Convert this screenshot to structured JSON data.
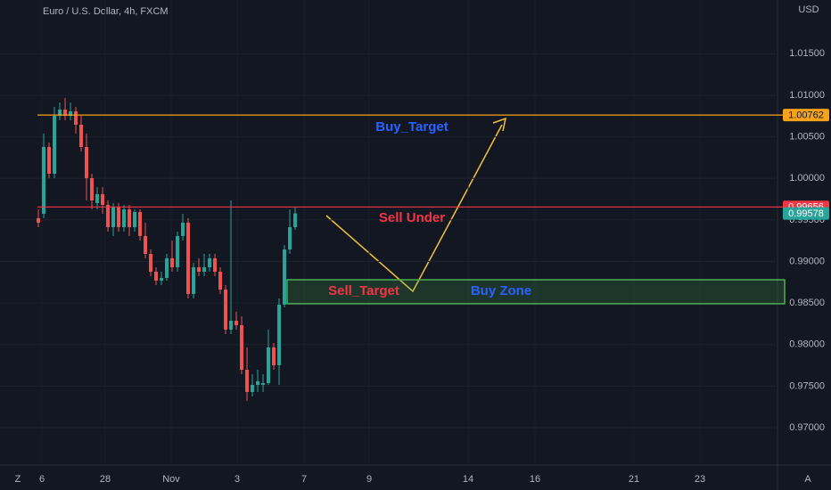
{
  "chart_data": {
    "type": "candlestick",
    "title": "Euro / U.S. Dollar, 4h, FXCM",
    "y_axis_label": "USD",
    "buttons": [
      "Z",
      "A"
    ],
    "up_color": "#26a69a",
    "down_color": "#ef5350",
    "grid": true,
    "series": {
      "open": [
        0.9952,
        0.99574,
        1.00378,
        1.00056,
        1.00753,
        1.00828,
        1.00753,
        1.00807,
        1.00646,
        1.00378,
        1.00003,
        0.99702,
        0.9981,
        0.99681,
        0.99413,
        0.9966,
        0.99413,
        0.99627,
        0.99413,
        0.99595,
        0.99306,
        0.99091,
        0.98877,
        0.98769,
        0.98802,
        0.99038,
        0.9893,
        0.99306,
        0.99467,
        0.98609,
        0.9893,
        0.98877,
        0.9893,
        0.99038,
        0.98877,
        0.98662,
        0.9818,
        0.98287,
        0.98233,
        0.97697,
        0.97429,
        0.97515,
        0.97515,
        0.97536,
        0.97965,
        0.97751,
        0.9848,
        0.99145,
        0.99413
      ],
      "high": [
        0.99627,
        1.00539,
        1.00432,
        1.00861,
        1.00914,
        1.00968,
        1.00914,
        1.00861,
        1.00753,
        1.00539,
        1.00056,
        0.99895,
        0.99895,
        0.99735,
        0.99702,
        0.99702,
        0.99681,
        0.99681,
        0.99627,
        0.99627,
        0.99467,
        0.99145,
        0.9893,
        0.98877,
        0.99091,
        0.99252,
        0.99359,
        0.99574,
        0.9952,
        0.98984,
        0.99038,
        0.99091,
        0.99091,
        0.99091,
        0.9893,
        0.98716,
        0.99735,
        0.98394,
        0.9834,
        0.97965,
        0.97643,
        0.97697,
        0.97643,
        0.9818,
        0.98019,
        0.98555,
        0.99198,
        0.99627,
        0.9966
      ],
      "low": [
        0.99413,
        0.9952,
        1.00003,
        1.00003,
        1.007,
        1.007,
        1.007,
        1.00539,
        1.00324,
        0.99735,
        0.99627,
        0.99627,
        0.99574,
        0.99359,
        0.99306,
        0.99359,
        0.99359,
        0.99306,
        0.99359,
        0.99252,
        0.99038,
        0.98823,
        0.98716,
        0.98716,
        0.98769,
        0.98877,
        0.98877,
        0.99252,
        0.98555,
        0.98555,
        0.98823,
        0.98823,
        0.98877,
        0.98823,
        0.98609,
        0.98126,
        0.98126,
        0.9818,
        0.97643,
        0.97322,
        0.97375,
        0.97429,
        0.97429,
        0.97515,
        0.97697,
        0.97515,
        0.98448,
        0.99091,
        0.99381
      ],
      "close": [
        0.99467,
        1.00378,
        1.00056,
        1.00753,
        1.00828,
        1.00753,
        1.00807,
        1.00646,
        1.00378,
        1.00003,
        0.99735,
        0.9981,
        0.99681,
        0.99413,
        0.9966,
        0.99413,
        0.99627,
        0.99413,
        0.99595,
        0.99306,
        0.99091,
        0.98877,
        0.98769,
        0.98802,
        0.99038,
        0.9893,
        0.99306,
        0.99467,
        0.98609,
        0.9893,
        0.98877,
        0.9893,
        0.99038,
        0.98877,
        0.98662,
        0.9818,
        0.98287,
        0.98233,
        0.97697,
        0.97429,
        0.97515,
        0.97558,
        0.97536,
        0.97965,
        0.97751,
        0.9848,
        0.99145,
        0.99413,
        0.99578
      ]
    },
    "xlim": [
      -7.17,
      137.83
    ],
    "xticks": [
      {
        "value": 0.67,
        "label": "6"
      },
      {
        "value": 12.5,
        "label": "28"
      },
      {
        "value": 24.83,
        "label": "Nov"
      },
      {
        "value": 37.17,
        "label": "3"
      },
      {
        "value": 49.67,
        "label": "7"
      },
      {
        "value": 61.83,
        "label": "9"
      },
      {
        "value": 80.33,
        "label": "14"
      },
      {
        "value": 92.83,
        "label": "16"
      },
      {
        "value": 111.33,
        "label": "21"
      },
      {
        "value": 123.67,
        "label": "23"
      }
    ],
    "ylim": [
      0.96571,
      1.02147
    ],
    "yticks": [
      {
        "value": 0.97,
        "label": "0.97000"
      },
      {
        "value": 0.975,
        "label": "0.97500"
      },
      {
        "value": 0.98,
        "label": "0.98000"
      },
      {
        "value": 0.985,
        "label": "0.98500"
      },
      {
        "value": 0.99,
        "label": "0.99000"
      },
      {
        "value": 0.995,
        "label": "0.99500"
      },
      {
        "value": 1.0,
        "label": "1.00000"
      },
      {
        "value": 1.005,
        "label": "1.00500"
      },
      {
        "value": 1.01,
        "label": "1.01000"
      },
      {
        "value": 1.015,
        "label": "1.01500"
      }
    ],
    "levels": [
      {
        "value": 1.00762,
        "color": "#f7a21b",
        "text_color": "#131722"
      },
      {
        "value": 0.99656,
        "color": "#f23645",
        "text_color": "#ffffff"
      },
      {
        "value": 0.99578,
        "color": "#26a69a",
        "text_color": "#ffffff"
      }
    ],
    "zone": {
      "from": 0.98491,
      "to": 0.9878,
      "label": "Buy Zone",
      "color": "#4caf50"
    },
    "annotations": [
      {
        "text": "Buy_Target",
        "color": "#2962ff"
      },
      {
        "text": "Sell Under",
        "color": "#f23645"
      },
      {
        "text": "Sell_Target",
        "color": "#f23645"
      }
    ]
  }
}
